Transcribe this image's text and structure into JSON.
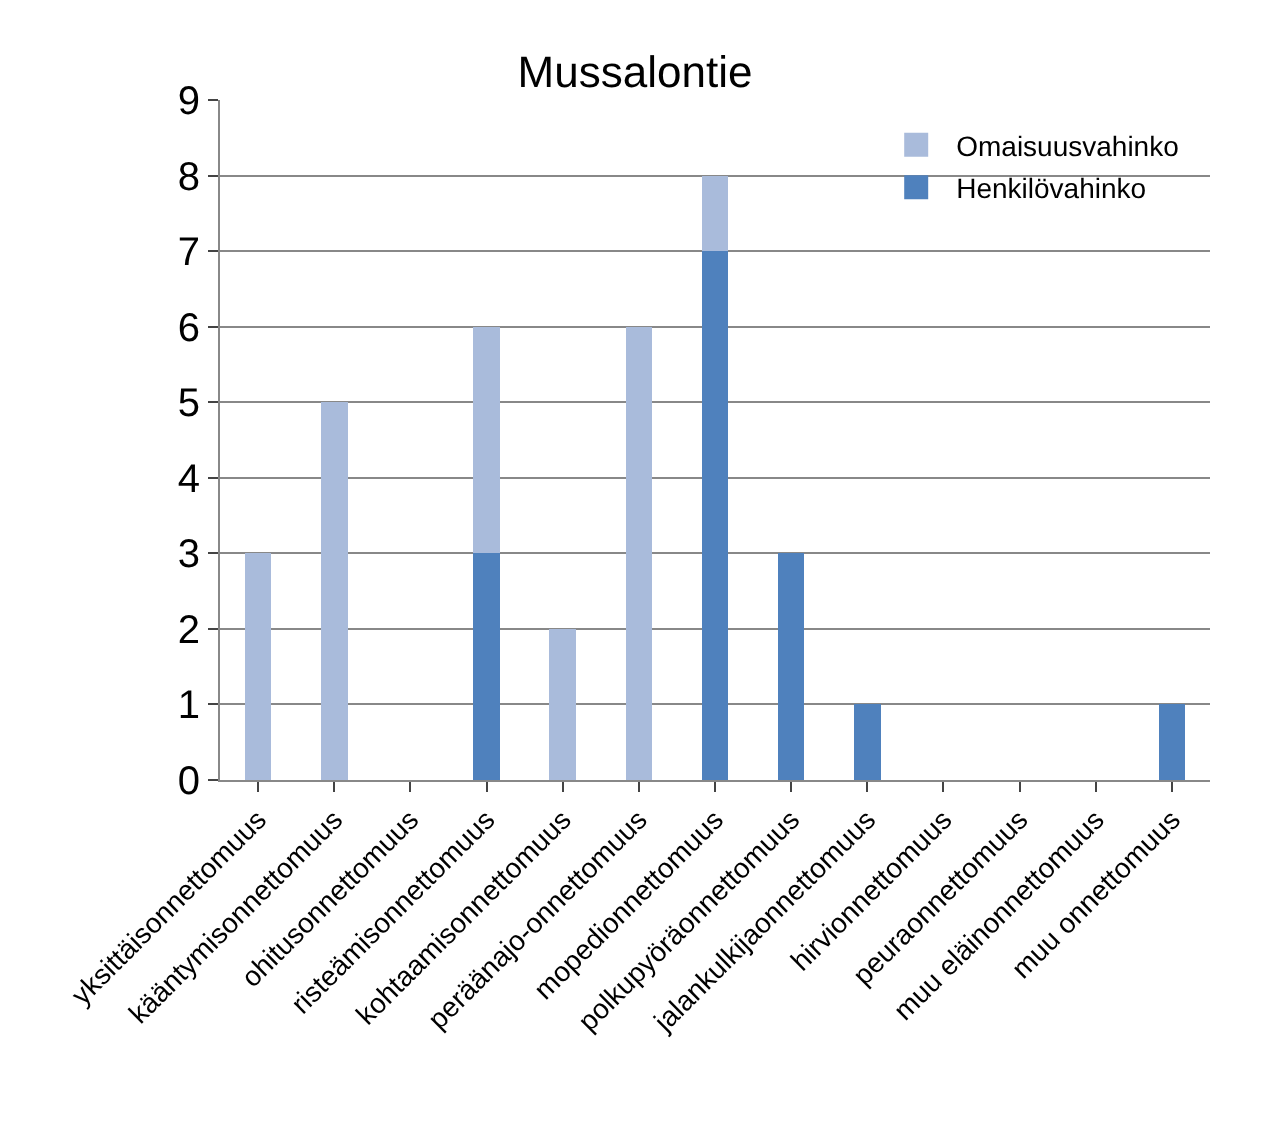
{
  "chart_data": {
    "type": "bar",
    "title": "Mussalontie",
    "stacked": true,
    "categories": [
      "yksittäisonnettomuus",
      "kääntymisonnettomuus",
      "ohitusonnettomuus",
      "risteämisonnettomuus",
      "kohtaamisonnettomuus",
      "peräänajo-onnettomuus",
      "mopedionnettomuus",
      "polkupyöräonnettomuus",
      "jalankulkijaonnettomuus",
      "hirvionnettomuus",
      "peuraonnettomuus",
      "muu eläinonnettomuus",
      "muu onnettomuus"
    ],
    "series": [
      {
        "name": "Henkilövahinko",
        "color": "#4f81bd",
        "values": [
          0,
          0,
          0,
          3,
          0,
          0,
          7,
          3,
          1,
          0,
          0,
          0,
          1
        ]
      },
      {
        "name": "Omaisuusvahinko",
        "color": "#a9bbdb",
        "values": [
          3,
          5,
          0,
          3,
          2,
          6,
          1,
          0,
          0,
          0,
          0,
          0,
          0
        ]
      }
    ],
    "ylim": [
      0,
      9
    ],
    "yticks": [
      0,
      1,
      2,
      3,
      4,
      5,
      6,
      7,
      8,
      9
    ],
    "grid": "y",
    "legend": "top right"
  }
}
